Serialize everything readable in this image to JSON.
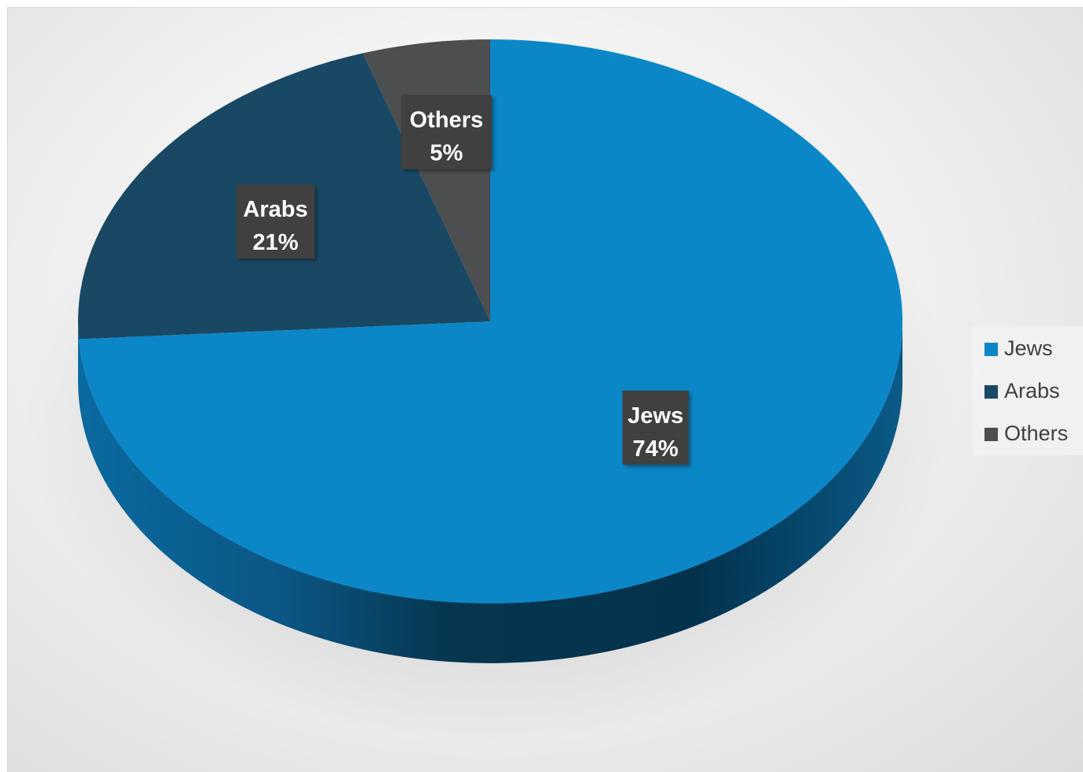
{
  "chart_data": {
    "type": "pie",
    "categories": [
      "Jews",
      "Arabs",
      "Others"
    ],
    "values": [
      74,
      21,
      5
    ],
    "data_labels": [
      {
        "name": "Jews",
        "percent": "74%"
      },
      {
        "name": "Arabs",
        "percent": "21%"
      },
      {
        "name": "Others",
        "percent": "5%"
      }
    ],
    "colors": [
      "#0B87C8",
      "#194864",
      "#4D4E50"
    ],
    "title": "",
    "legend": {
      "placement": "right",
      "entries": [
        "Jews",
        "Arabs",
        "Others"
      ]
    },
    "style": "3d"
  }
}
